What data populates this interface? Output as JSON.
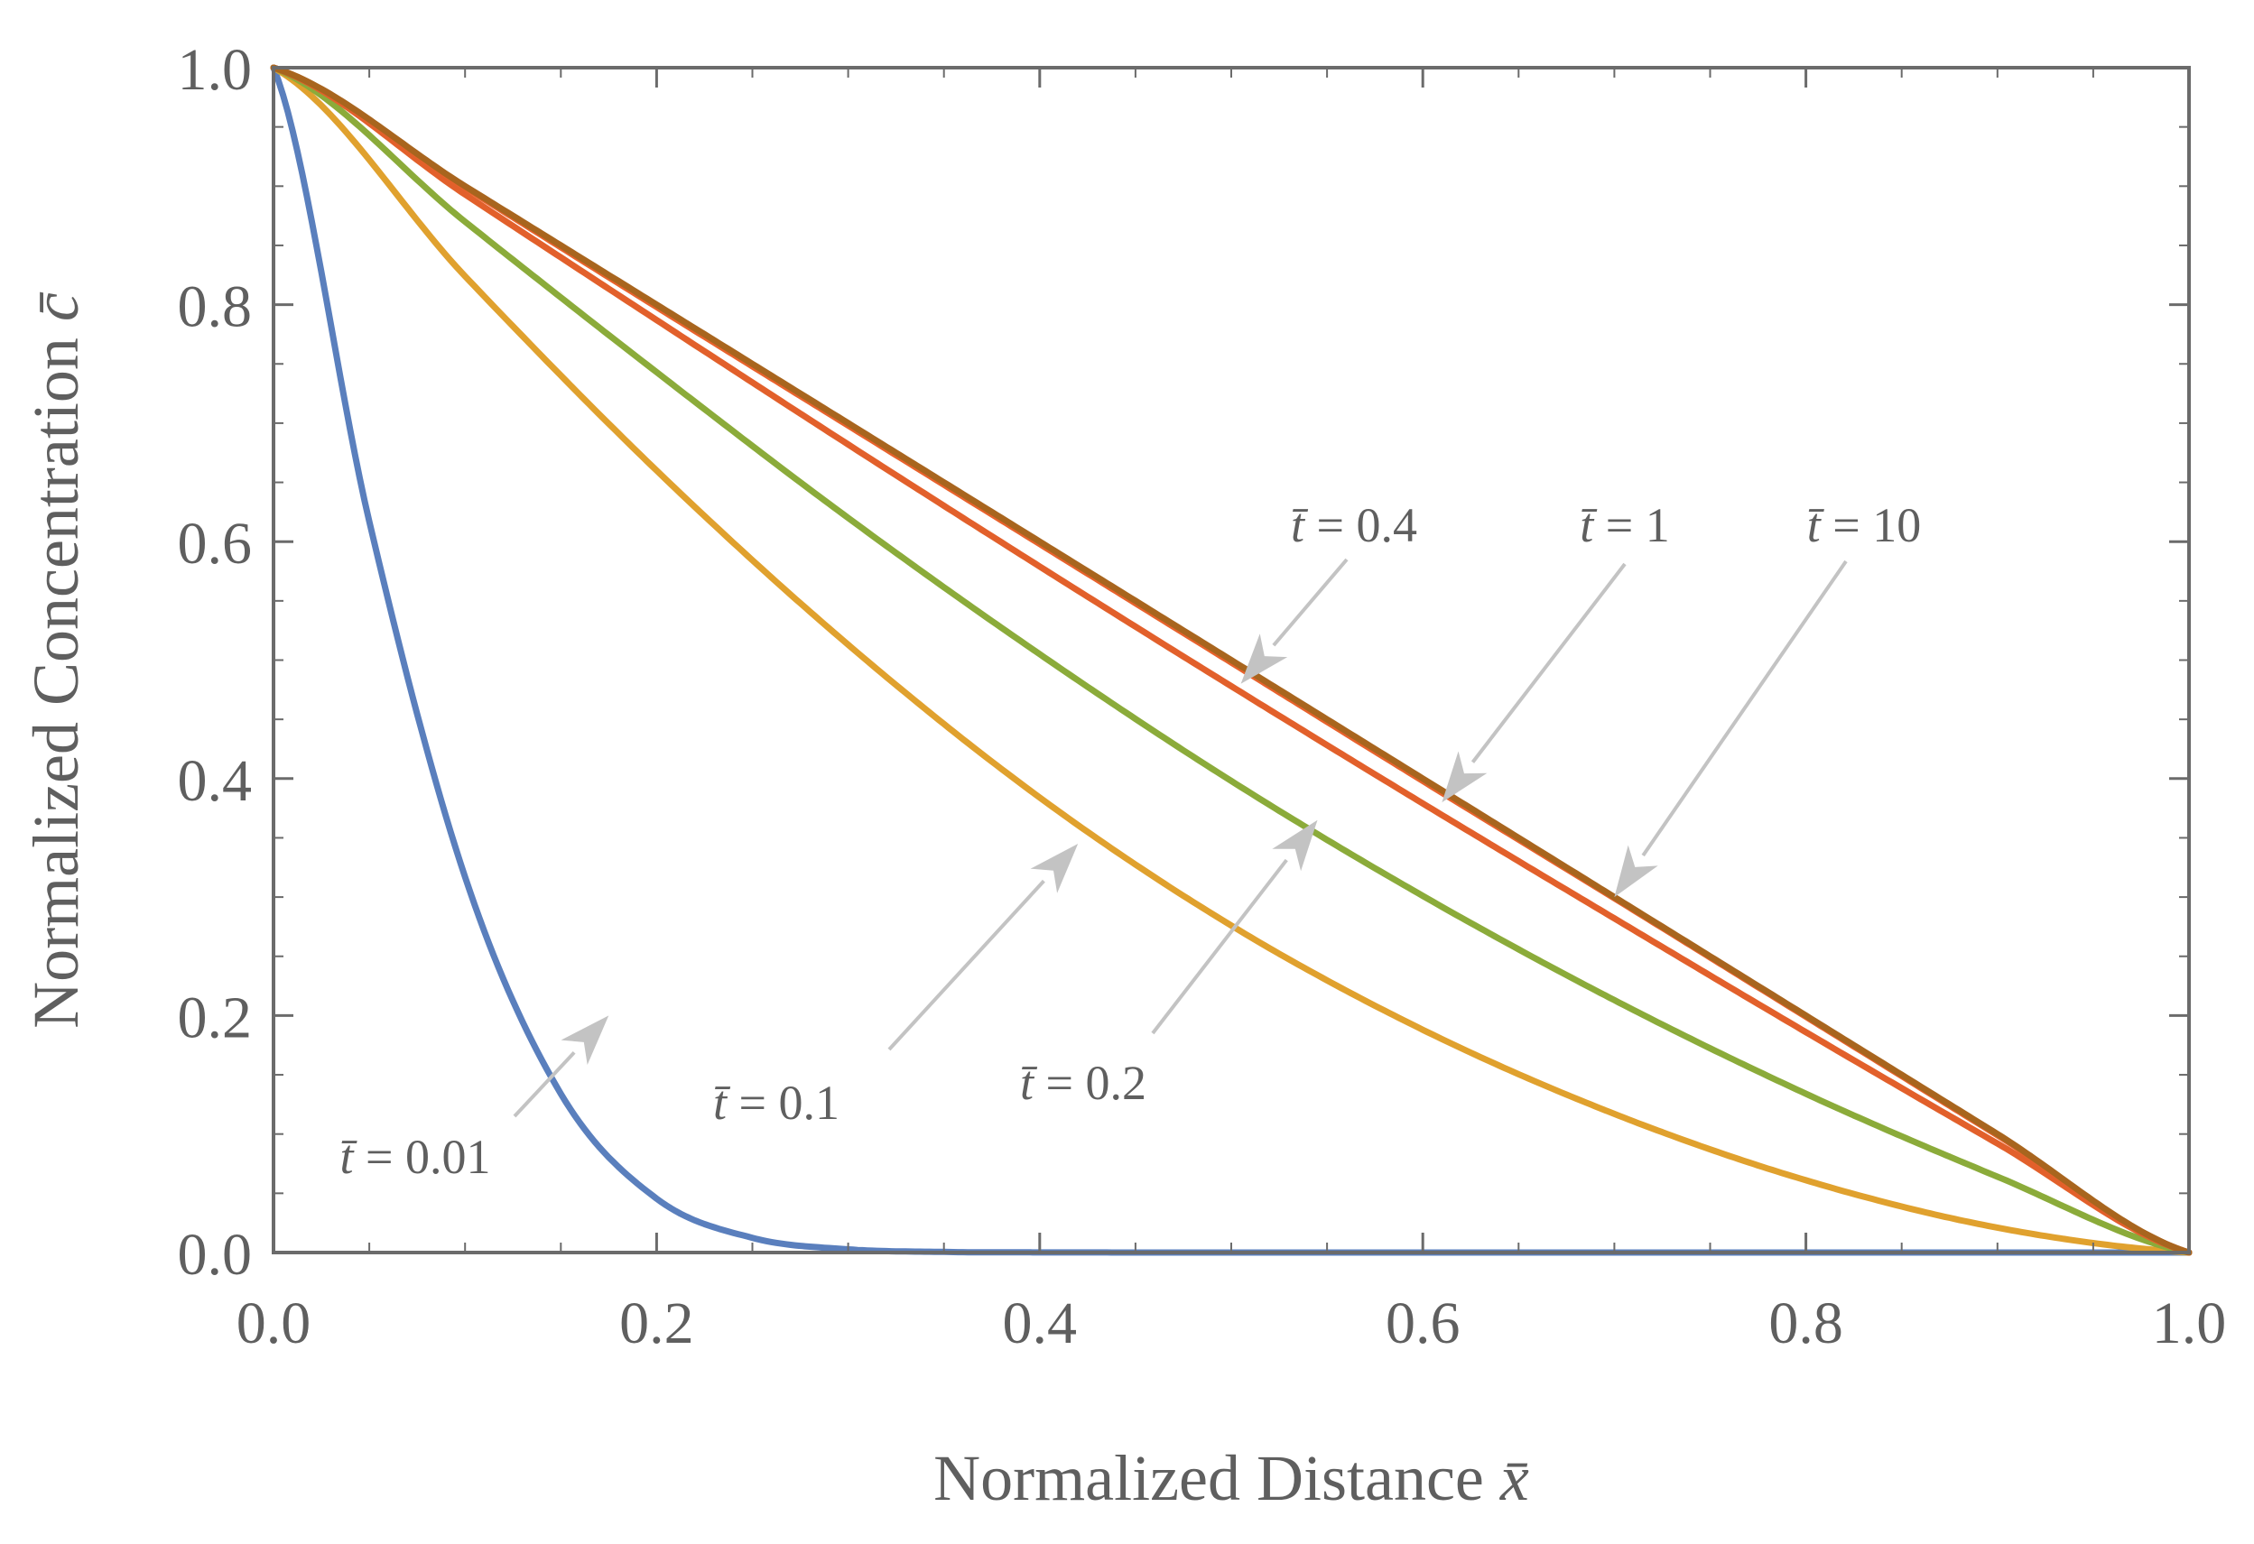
{
  "chart_data": {
    "type": "line",
    "title": "",
    "xlabel": "Normalized Distance",
    "xlabel_symbol": "x̄",
    "ylabel": "Normalized Concentration",
    "ylabel_symbol": "c̄",
    "xlim": [
      0,
      1
    ],
    "ylim": [
      0,
      1
    ],
    "xticks": [
      "0.0",
      "0.2",
      "0.4",
      "0.6",
      "0.8",
      "1.0"
    ],
    "yticks": [
      "0.0",
      "0.2",
      "0.4",
      "0.6",
      "0.8",
      "1.0"
    ],
    "grid": false,
    "series": [
      {
        "name": "t̄ = 0.01",
        "t": 0.01,
        "color": "#5a7fbd",
        "x": [
          0,
          0.05,
          0.1,
          0.15,
          0.2,
          0.25,
          0.3,
          0.35,
          0.4,
          0.5,
          0.6,
          0.8,
          1.0
        ],
        "y": [
          1.0,
          0.617,
          0.317,
          0.134,
          0.0455,
          0.0124,
          0.0027,
          0.0005,
          0.0001,
          0,
          0,
          0,
          0
        ]
      },
      {
        "name": "t̄ = 0.1",
        "t": 0.1,
        "color": "#e0a12e",
        "x": [
          0,
          0.1,
          0.2,
          0.3,
          0.4,
          0.5,
          0.6,
          0.7,
          0.8,
          0.9,
          1.0
        ],
        "y": [
          1.0,
          0.824,
          0.66,
          0.513,
          0.384,
          0.276,
          0.188,
          0.117,
          0.061,
          0.021,
          0
        ]
      },
      {
        "name": "t̄ = 0.2",
        "t": 0.2,
        "color": "#8bab3a",
        "x": [
          0,
          0.1,
          0.2,
          0.3,
          0.4,
          0.5,
          0.6,
          0.7,
          0.8,
          0.9,
          1.0
        ],
        "y": [
          1.0,
          0.87,
          0.743,
          0.62,
          0.505,
          0.398,
          0.301,
          0.213,
          0.134,
          0.064,
          0
        ]
      },
      {
        "name": "t̄ = 0.4",
        "t": 0.4,
        "color": "#e2602b",
        "x": [
          0,
          0.1,
          0.2,
          0.3,
          0.4,
          0.5,
          0.6,
          0.7,
          0.8,
          0.9,
          1.0
        ],
        "y": [
          1.0,
          0.893,
          0.787,
          0.682,
          0.579,
          0.478,
          0.379,
          0.282,
          0.186,
          0.092,
          0
        ]
      },
      {
        "name": "t̄ = 1",
        "t": 1,
        "color": "#e8622c",
        "x": [
          0,
          0.1,
          0.2,
          0.3,
          0.4,
          0.5,
          0.6,
          0.7,
          0.8,
          0.9,
          1.0
        ],
        "y": [
          1.0,
          0.899,
          0.798,
          0.698,
          0.598,
          0.498,
          0.398,
          0.299,
          0.199,
          0.099,
          0
        ]
      },
      {
        "name": "t̄ = 10",
        "t": 10,
        "color": "#a8651e",
        "x": [
          0,
          0.1,
          0.2,
          0.3,
          0.4,
          0.5,
          0.6,
          0.7,
          0.8,
          0.9,
          1.0
        ],
        "y": [
          1.0,
          0.9,
          0.8,
          0.7,
          0.6,
          0.5,
          0.4,
          0.3,
          0.2,
          0.1,
          0
        ]
      }
    ],
    "annotations": [
      {
        "text": "t̄ = 0.01",
        "series": "t̄ = 0.01",
        "point": [
          0.175,
          0.2
        ]
      },
      {
        "text": "t̄ = 0.1",
        "series": "t̄ = 0.1",
        "point": [
          0.42,
          0.345
        ]
      },
      {
        "text": "t̄ = 0.2",
        "series": "t̄ = 0.2",
        "point": [
          0.545,
          0.365
        ]
      },
      {
        "text": "t̄ = 0.4",
        "series": "t̄ = 0.4",
        "point": [
          0.505,
          0.48
        ]
      },
      {
        "text": "t̄ = 1",
        "series": "t̄ = 1",
        "point": [
          0.61,
          0.38
        ]
      },
      {
        "text": "t̄ = 10",
        "series": "t̄ = 10",
        "point": [
          0.7,
          0.3
        ]
      }
    ]
  }
}
